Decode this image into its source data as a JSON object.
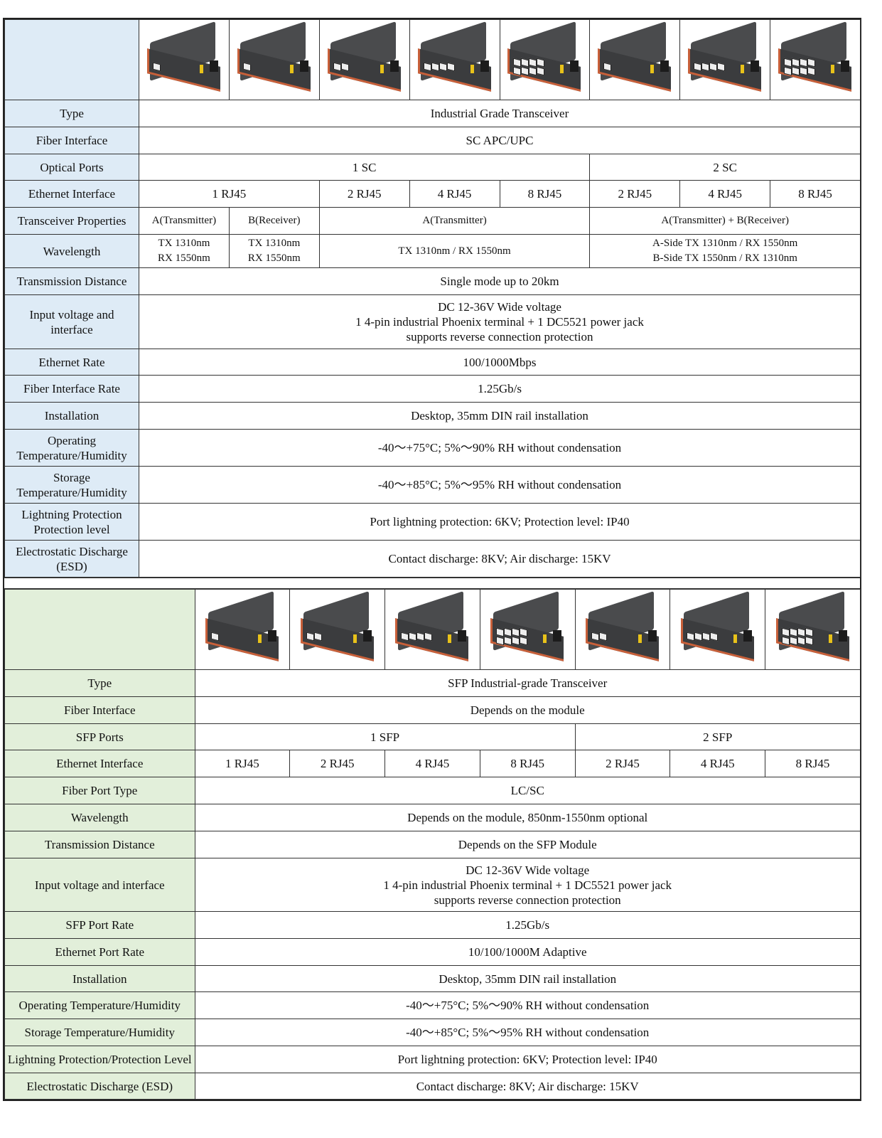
{
  "colors": {
    "table1_label_bg": "#deebf6",
    "table2_label_bg": "#e2efda",
    "border": "#333333"
  },
  "table1": {
    "product_images": 8,
    "rows": [
      {
        "label": "Type",
        "cells": [
          {
            "text": "Industrial Grade Transceiver",
            "span": 8
          }
        ]
      },
      {
        "label": "Fiber Interface",
        "cells": [
          {
            "text": "SC APC/UPC",
            "span": 8
          }
        ]
      },
      {
        "label": "Optical Ports",
        "cells": [
          {
            "text": "1 SC",
            "span": 5
          },
          {
            "text": "2 SC",
            "span": 3
          }
        ]
      },
      {
        "label": "Ethernet Interface",
        "cells": [
          {
            "text": "1 RJ45",
            "span": 2
          },
          {
            "text": "2 RJ45",
            "span": 1
          },
          {
            "text": "4 RJ45",
            "span": 1
          },
          {
            "text": "8 RJ45",
            "span": 1
          },
          {
            "text": "2 RJ45",
            "span": 1
          },
          {
            "text": "4 RJ45",
            "span": 1
          },
          {
            "text": "8 RJ45",
            "span": 1
          }
        ]
      },
      {
        "label": "Transceiver Properties",
        "small": true,
        "cells": [
          {
            "text": "A(Transmitter)",
            "span": 1
          },
          {
            "text": "B(Receiver)",
            "span": 1
          },
          {
            "text": "A(Transmitter)",
            "span": 3
          },
          {
            "text": "A(Transmitter) + B(Receiver)",
            "span": 3
          }
        ]
      },
      {
        "label": "Wavelength",
        "small": true,
        "cells": [
          {
            "text": "TX 1310nm\nRX 1550nm",
            "span": 1
          },
          {
            "text": "TX 1310nm\nRX 1550nm",
            "span": 1
          },
          {
            "text": "TX 1310nm / RX 1550nm",
            "span": 3
          },
          {
            "text": "A-Side TX 1310nm / RX 1550nm\nB-Side TX 1550nm / RX 1310nm",
            "span": 3
          }
        ]
      },
      {
        "label": "Transmission Distance",
        "cells": [
          {
            "text": "Single mode up to 20km",
            "span": 8
          }
        ]
      },
      {
        "label": "Input voltage and\ninterface",
        "cells": [
          {
            "text": "DC 12-36V Wide voltage\n1 4-pin industrial Phoenix terminal + 1 DC5521 power jack\nsupports reverse connection protection",
            "span": 8
          }
        ]
      },
      {
        "label": "Ethernet Rate",
        "cells": [
          {
            "text": "100/1000Mbps",
            "span": 8
          }
        ]
      },
      {
        "label": "Fiber Interface Rate",
        "cells": [
          {
            "text": "1.25Gb/s",
            "span": 8
          }
        ]
      },
      {
        "label": "Installation",
        "cells": [
          {
            "text": "Desktop, 35mm DIN rail installation",
            "span": 8
          }
        ]
      },
      {
        "label": "Operating\nTemperature/Humidity",
        "cells": [
          {
            "text": "-40～+75°C; 5%～90% RH without condensation",
            "span": 8
          }
        ]
      },
      {
        "label": "Storage\nTemperature/Humidity",
        "cells": [
          {
            "text": "-40～+85°C; 5%～95% RH without condensation",
            "span": 8
          }
        ]
      },
      {
        "label": "Lightning Protection\nProtection level",
        "cells": [
          {
            "text": "Port lightning protection: 6KV; Protection level: IP40",
            "span": 8
          }
        ]
      },
      {
        "label": "Electrostatic Discharge\n(ESD)",
        "cells": [
          {
            "text": "Contact discharge: 8KV; Air discharge: 15KV",
            "span": 8
          }
        ]
      }
    ]
  },
  "table2": {
    "product_images": 7,
    "rows": [
      {
        "label": "Type",
        "cells": [
          {
            "text": "SFP Industrial-grade Transceiver",
            "span": 7
          }
        ]
      },
      {
        "label": "Fiber Interface",
        "cells": [
          {
            "text": "Depends on the module",
            "span": 7
          }
        ]
      },
      {
        "label": "SFP Ports",
        "cells": [
          {
            "text": "1 SFP",
            "span": 4
          },
          {
            "text": "2 SFP",
            "span": 3
          }
        ]
      },
      {
        "label": "Ethernet Interface",
        "cells": [
          {
            "text": "1 RJ45",
            "span": 1
          },
          {
            "text": "2 RJ45",
            "span": 1
          },
          {
            "text": "4 RJ45",
            "span": 1
          },
          {
            "text": "8 RJ45",
            "span": 1
          },
          {
            "text": "2 RJ45",
            "span": 1
          },
          {
            "text": "4 RJ45",
            "span": 1
          },
          {
            "text": "8 RJ45",
            "span": 1
          }
        ]
      },
      {
        "label": "Fiber Port Type",
        "cells": [
          {
            "text": "LC/SC",
            "span": 7
          }
        ]
      },
      {
        "label": "Wavelength",
        "cells": [
          {
            "text": "Depends on the module, 850nm-1550nm optional",
            "span": 7
          }
        ]
      },
      {
        "label": "Transmission Distance",
        "cells": [
          {
            "text": "Depends on the SFP Module",
            "span": 7
          }
        ]
      },
      {
        "label": "Input voltage and interface",
        "cells": [
          {
            "text": "DC 12-36V Wide voltage\n1 4-pin industrial Phoenix terminal + 1 DC5521 power jack\nsupports reverse connection protection",
            "span": 7
          }
        ]
      },
      {
        "label": "SFP Port Rate",
        "cells": [
          {
            "text": "1.25Gb/s",
            "span": 7
          }
        ]
      },
      {
        "label": "Ethernet Port Rate",
        "cells": [
          {
            "text": "10/100/1000M Adaptive",
            "span": 7
          }
        ]
      },
      {
        "label": "Installation",
        "cells": [
          {
            "text": "Desktop, 35mm DIN rail installation",
            "span": 7
          }
        ]
      },
      {
        "label": "Operating Temperature/Humidity",
        "cells": [
          {
            "text": "-40～+75°C; 5%～90% RH without condensation",
            "span": 7
          }
        ]
      },
      {
        "label": "Storage Temperature/Humidity",
        "cells": [
          {
            "text": "-40～+85°C; 5%～95% RH without condensation",
            "span": 7
          }
        ]
      },
      {
        "label": "Lightning Protection/Protection Level",
        "cells": [
          {
            "text": "Port lightning protection: 6KV; Protection level: IP40",
            "span": 7
          }
        ]
      },
      {
        "label": "Electrostatic Discharge (ESD)",
        "cells": [
          {
            "text": "Contact discharge: 8KV; Air discharge: 15KV",
            "span": 7
          }
        ]
      }
    ]
  }
}
